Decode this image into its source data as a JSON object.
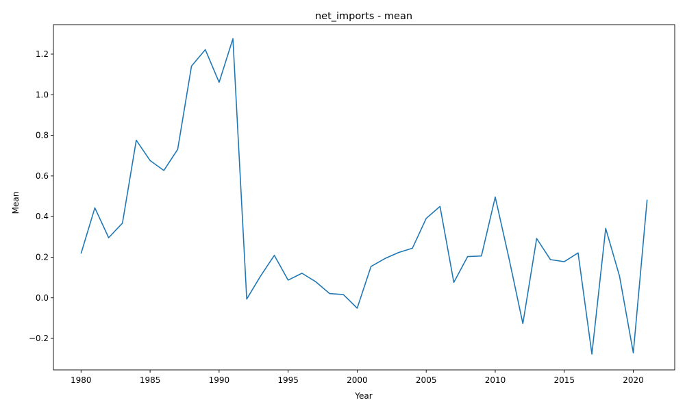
{
  "chart_data": {
    "type": "line",
    "title": "net_imports - mean",
    "xlabel": "Year",
    "ylabel": "Mean",
    "xlim": [
      1978,
      2023
    ],
    "ylim": [
      -0.355,
      1.345
    ],
    "xticks": [
      1980,
      1985,
      1990,
      1995,
      2000,
      2005,
      2010,
      2015,
      2020
    ],
    "xtick_labels": [
      "1980",
      "1985",
      "1990",
      "1995",
      "2000",
      "2005",
      "2010",
      "2015",
      "2020"
    ],
    "yticks": [
      -0.2,
      0.0,
      0.2,
      0.4,
      0.6,
      0.8,
      1.0,
      1.2
    ],
    "ytick_labels": [
      "−0.2",
      "0.0",
      "0.2",
      "0.4",
      "0.6",
      "0.8",
      "1.0",
      "1.2"
    ],
    "grid": false,
    "line_color": "#1f77b4",
    "x": [
      1980,
      1981,
      1982,
      1983,
      1984,
      1985,
      1986,
      1987,
      1988,
      1989,
      1990,
      1991,
      1992,
      1993,
      1994,
      1995,
      1996,
      1997,
      1998,
      1999,
      2000,
      2001,
      2002,
      2003,
      2004,
      2005,
      2006,
      2007,
      2008,
      2009,
      2010,
      2011,
      2012,
      2013,
      2014,
      2015,
      2016,
      2017,
      2018,
      2019,
      2020,
      2021
    ],
    "y": [
      0.218,
      0.443,
      0.296,
      0.368,
      0.776,
      0.676,
      0.627,
      0.731,
      1.141,
      1.222,
      1.061,
      1.276,
      -0.006,
      0.107,
      0.209,
      0.087,
      0.121,
      0.079,
      0.021,
      0.016,
      -0.051,
      0.154,
      0.193,
      0.223,
      0.244,
      0.391,
      0.45,
      0.076,
      0.203,
      0.206,
      0.496,
      0.193,
      -0.127,
      0.292,
      0.188,
      0.178,
      0.221,
      -0.277,
      0.342,
      0.107,
      -0.271,
      0.483
    ]
  }
}
